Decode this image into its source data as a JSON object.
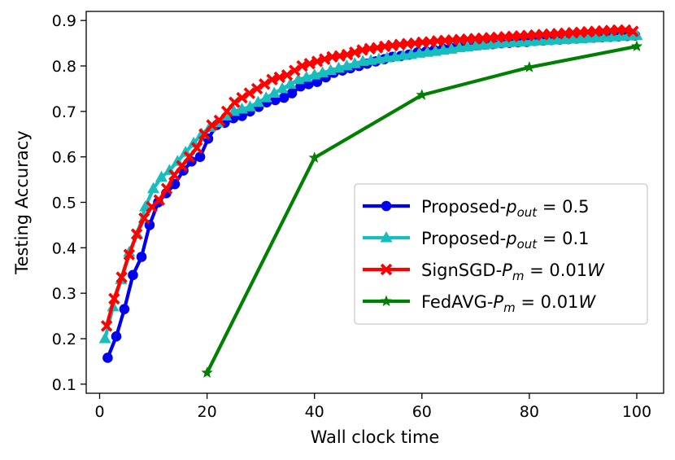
{
  "chart_data": {
    "type": "line",
    "xlabel": "Wall clock time",
    "ylabel": "Testing Accuracy",
    "xlim": [
      -2.5,
      105
    ],
    "ylim": [
      0.08,
      0.92
    ],
    "xticks": [
      0,
      20,
      40,
      60,
      80,
      100
    ],
    "yticks": [
      0.1,
      0.2,
      0.3,
      0.4,
      0.5,
      0.6,
      0.7,
      0.8,
      0.9
    ],
    "xtick_labels": [
      "0",
      "20",
      "40",
      "60",
      "80",
      "100"
    ],
    "ytick_labels": [
      "0.1",
      "0.2",
      "0.3",
      "0.4",
      "0.5",
      "0.6",
      "0.7",
      "0.8",
      "0.9"
    ],
    "legend_position": "center-right",
    "series": [
      {
        "key": "proposed-05",
        "name": "Proposed-p_out = 0.5",
        "legend_prefix": "Proposed-",
        "legend_sym": "p",
        "legend_sub": "out",
        "legend_value": " = 0.5",
        "color": "#0000ee",
        "marker": "circle",
        "x": [
          1.5,
          3.1,
          4.6,
          6.2,
          7.8,
          9.3,
          10.9,
          12.4,
          14,
          15.6,
          17.1,
          18.7,
          20.2,
          21.8,
          23.3,
          24.9,
          26.5,
          28,
          29.6,
          31.1,
          32.7,
          34.3,
          35.8,
          37.4,
          38.9,
          40.5,
          42.1,
          43.6,
          45.2,
          46.7,
          48.3,
          49.8,
          51.4,
          53,
          54.5,
          56.1,
          57.6,
          59.2,
          60.8,
          62.3,
          63.9,
          65.4,
          67,
          68.5,
          70.1,
          71.7,
          73.2,
          74.8,
          76.3,
          77.9,
          79.5,
          81,
          82.6,
          84.1,
          85.7,
          87.3,
          88.8,
          90.4,
          91.9,
          93.5,
          95,
          96.6,
          98.2,
          99.7
        ],
        "y": [
          0.158,
          0.205,
          0.265,
          0.34,
          0.38,
          0.45,
          0.5,
          0.52,
          0.54,
          0.57,
          0.59,
          0.6,
          0.64,
          0.67,
          0.675,
          0.685,
          0.69,
          0.7,
          0.71,
          0.72,
          0.725,
          0.73,
          0.74,
          0.755,
          0.76,
          0.765,
          0.775,
          0.785,
          0.79,
          0.795,
          0.8,
          0.805,
          0.81,
          0.815,
          0.82,
          0.822,
          0.825,
          0.83,
          0.832,
          0.835,
          0.838,
          0.84,
          0.842,
          0.843,
          0.845,
          0.847,
          0.848,
          0.85,
          0.851,
          0.852,
          0.853,
          0.855,
          0.856,
          0.857,
          0.858,
          0.859,
          0.86,
          0.861,
          0.862,
          0.863,
          0.864,
          0.865,
          0.866,
          0.867
        ]
      },
      {
        "key": "proposed-01",
        "name": "Proposed-p_out = 0.1",
        "legend_prefix": "Proposed-",
        "legend_sym": "p",
        "legend_sub": "out",
        "legend_value": " = 0.1",
        "color": "#17bebd",
        "marker": "triangle",
        "x": [
          1,
          2.5,
          4,
          5.5,
          7,
          8.5,
          10,
          11.5,
          13,
          14.5,
          16,
          17.5,
          19,
          20.5,
          22,
          23.5,
          25,
          26.5,
          28,
          29.5,
          31,
          32.5,
          34,
          35.5,
          37,
          38.5,
          40,
          41.5,
          43,
          44.5,
          46,
          47.5,
          49,
          50.5,
          52,
          53.5,
          55,
          56.5,
          58,
          59.5,
          61,
          62.5,
          64,
          65.5,
          67,
          68.5,
          70,
          71.5,
          73,
          74.5,
          76,
          77.5,
          79,
          80.5,
          82,
          83.5,
          85,
          86.5,
          88,
          89.5,
          91,
          92.5,
          94,
          95.5,
          97,
          98.5,
          100
        ],
        "y": [
          0.2,
          0.27,
          0.33,
          0.39,
          0.43,
          0.49,
          0.53,
          0.555,
          0.57,
          0.59,
          0.61,
          0.63,
          0.65,
          0.665,
          0.675,
          0.69,
          0.7,
          0.705,
          0.71,
          0.72,
          0.73,
          0.74,
          0.75,
          0.76,
          0.77,
          0.775,
          0.78,
          0.785,
          0.79,
          0.795,
          0.8,
          0.805,
          0.81,
          0.812,
          0.815,
          0.818,
          0.82,
          0.823,
          0.825,
          0.828,
          0.83,
          0.832,
          0.835,
          0.837,
          0.84,
          0.842,
          0.844,
          0.846,
          0.848,
          0.85,
          0.851,
          0.852,
          0.853,
          0.854,
          0.855,
          0.856,
          0.857,
          0.858,
          0.859,
          0.86,
          0.861,
          0.862,
          0.863,
          0.864,
          0.865,
          0.866,
          0.867
        ]
      },
      {
        "key": "signsgd",
        "name": "SignSGD-P_m = 0.01W",
        "legend_prefix": "SignSGD-",
        "legend_sym": "P",
        "legend_sub": "m",
        "legend_value": " = 0.01",
        "legend_suffix_italic": "W",
        "color": "#ff0000",
        "marker": "cross",
        "x": [
          1.3,
          2.7,
          4.1,
          5.5,
          6.9,
          8.3,
          9.7,
          11.1,
          12.5,
          13.9,
          15.3,
          16.7,
          18.1,
          19.5,
          20.9,
          22.3,
          23.7,
          25.1,
          26.5,
          27.9,
          29.3,
          30.7,
          32.1,
          33.5,
          34.9,
          36.3,
          37.7,
          39.1,
          40.5,
          41.9,
          43.3,
          44.7,
          46.1,
          47.5,
          48.9,
          50.3,
          51.7,
          53.1,
          54.5,
          55.9,
          57.3,
          58.7,
          60.1,
          61.5,
          62.9,
          64.3,
          65.7,
          67.1,
          68.5,
          69.9,
          71.3,
          72.7,
          74.1,
          75.5,
          76.9,
          78.3,
          79.7,
          81.1,
          82.5,
          83.9,
          85.3,
          86.7,
          88.1,
          89.5,
          90.9,
          92.3,
          93.7,
          95.1,
          96.5,
          97.9,
          99.3
        ],
        "y": [
          0.228,
          0.288,
          0.335,
          0.385,
          0.43,
          0.465,
          0.49,
          0.505,
          0.53,
          0.56,
          0.58,
          0.6,
          0.62,
          0.65,
          0.67,
          0.68,
          0.7,
          0.72,
          0.73,
          0.74,
          0.75,
          0.76,
          0.77,
          0.775,
          0.78,
          0.79,
          0.8,
          0.805,
          0.81,
          0.815,
          0.82,
          0.822,
          0.825,
          0.83,
          0.835,
          0.838,
          0.84,
          0.843,
          0.845,
          0.847,
          0.849,
          0.85,
          0.852,
          0.853,
          0.855,
          0.856,
          0.857,
          0.858,
          0.859,
          0.86,
          0.861,
          0.862,
          0.863,
          0.864,
          0.865,
          0.866,
          0.867,
          0.868,
          0.869,
          0.87,
          0.871,
          0.872,
          0.873,
          0.874,
          0.875,
          0.876,
          0.877,
          0.878,
          0.879,
          0.879,
          0.876
        ]
      },
      {
        "key": "fedavg",
        "name": "FedAVG-P_m = 0.01W",
        "legend_prefix": "FedAVG-",
        "legend_sym": "P",
        "legend_sub": "m",
        "legend_value": " = 0.01",
        "legend_suffix_italic": "W",
        "color": "#008000",
        "marker": "star",
        "x": [
          20,
          40,
          60,
          80,
          100
        ],
        "y": [
          0.125,
          0.598,
          0.736,
          0.797,
          0.843
        ]
      }
    ]
  }
}
